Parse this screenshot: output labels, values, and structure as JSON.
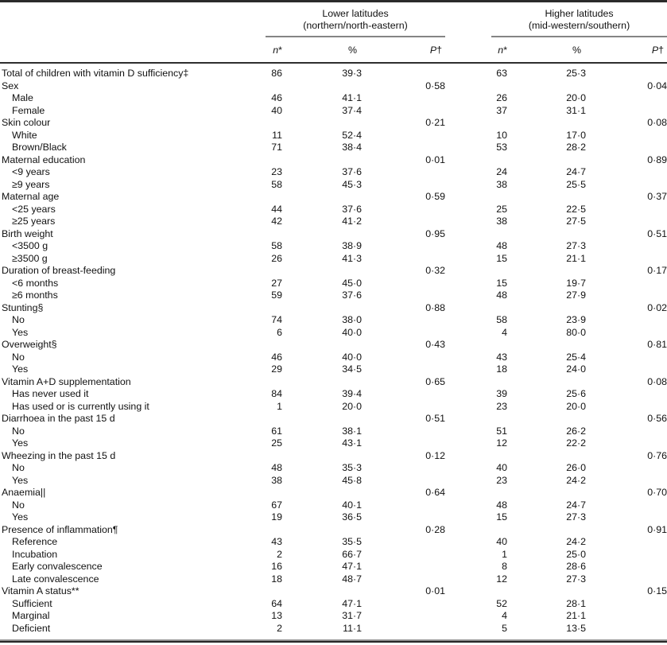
{
  "colors": {
    "rule_dark": "#2b2b2b",
    "rule_gray": "#8f8f8f",
    "text": "#111111"
  },
  "table": {
    "groups": [
      {
        "name": "Lower latitudes",
        "subtitle": "(northern/north-eastern)"
      },
      {
        "name": "Higher latitudes",
        "subtitle": "(mid-western/southern)"
      }
    ],
    "col_headers": {
      "n_letter": "n",
      "n_mark": "*",
      "pct": "%",
      "p_letter": "P",
      "p_mark": "†"
    },
    "rows": [
      {
        "label": "Total of children with vitamin D sufficiency‡",
        "indent": false,
        "n1": "86",
        "pct1": "39·3",
        "p1": "",
        "n2": "63",
        "pct2": "25·3",
        "p2": ""
      },
      {
        "label": "Sex",
        "indent": false,
        "n1": "",
        "pct1": "",
        "p1": "0·58",
        "n2": "",
        "pct2": "",
        "p2": "0·04"
      },
      {
        "label": "Male",
        "indent": true,
        "n1": "46",
        "pct1": "41·1",
        "p1": "",
        "n2": "26",
        "pct2": "20·0",
        "p2": ""
      },
      {
        "label": "Female",
        "indent": true,
        "n1": "40",
        "pct1": "37·4",
        "p1": "",
        "n2": "37",
        "pct2": "31·1",
        "p2": ""
      },
      {
        "label": "Skin colour",
        "indent": false,
        "n1": "",
        "pct1": "",
        "p1": "0·21",
        "n2": "",
        "pct2": "",
        "p2": "0·08"
      },
      {
        "label": "White",
        "indent": true,
        "n1": "11",
        "pct1": "52·4",
        "p1": "",
        "n2": "10",
        "pct2": "17·0",
        "p2": ""
      },
      {
        "label": "Brown/Black",
        "indent": true,
        "n1": "71",
        "pct1": "38·4",
        "p1": "",
        "n2": "53",
        "pct2": "28·2",
        "p2": ""
      },
      {
        "label": "Maternal education",
        "indent": false,
        "n1": "",
        "pct1": "",
        "p1": "0·01",
        "n2": "",
        "pct2": "",
        "p2": "0·89"
      },
      {
        "label": "<9 years",
        "indent": true,
        "n1": "23",
        "pct1": "37·6",
        "p1": "",
        "n2": "24",
        "pct2": "24·7",
        "p2": ""
      },
      {
        "label": "≥9 years",
        "indent": true,
        "n1": "58",
        "pct1": "45·3",
        "p1": "",
        "n2": "38",
        "pct2": "25·5",
        "p2": ""
      },
      {
        "label": "Maternal age",
        "indent": false,
        "n1": "",
        "pct1": "",
        "p1": "0·59",
        "n2": "",
        "pct2": "",
        "p2": "0·37"
      },
      {
        "label": "<25 years",
        "indent": true,
        "n1": "44",
        "pct1": "37·6",
        "p1": "",
        "n2": "25",
        "pct2": "22·5",
        "p2": ""
      },
      {
        "label": "≥25 years",
        "indent": true,
        "n1": "42",
        "pct1": "41·2",
        "p1": "",
        "n2": "38",
        "pct2": "27·5",
        "p2": ""
      },
      {
        "label": "Birth weight",
        "indent": false,
        "n1": "",
        "pct1": "",
        "p1": "0·95",
        "n2": "",
        "pct2": "",
        "p2": "0·51"
      },
      {
        "label": "<3500 g",
        "indent": true,
        "n1": "58",
        "pct1": "38·9",
        "p1": "",
        "n2": "48",
        "pct2": "27·3",
        "p2": ""
      },
      {
        "label": "≥3500 g",
        "indent": true,
        "n1": "26",
        "pct1": "41·3",
        "p1": "",
        "n2": "15",
        "pct2": "21·1",
        "p2": ""
      },
      {
        "label": "Duration of breast-feeding",
        "indent": false,
        "n1": "",
        "pct1": "",
        "p1": "0·32",
        "n2": "",
        "pct2": "",
        "p2": "0·17"
      },
      {
        "label": "<6 months",
        "indent": true,
        "n1": "27",
        "pct1": "45·0",
        "p1": "",
        "n2": "15",
        "pct2": "19·7",
        "p2": ""
      },
      {
        "label": "≥6 months",
        "indent": true,
        "n1": "59",
        "pct1": "37·6",
        "p1": "",
        "n2": "48",
        "pct2": "27·9",
        "p2": ""
      },
      {
        "label": "Stunting§",
        "indent": false,
        "n1": "",
        "pct1": "",
        "p1": "0·88",
        "n2": "",
        "pct2": "",
        "p2": "0·02"
      },
      {
        "label": "No",
        "indent": true,
        "n1": "74",
        "pct1": "38·0",
        "p1": "",
        "n2": "58",
        "pct2": "23·9",
        "p2": ""
      },
      {
        "label": "Yes",
        "indent": true,
        "n1": "6",
        "pct1": "40·0",
        "p1": "",
        "n2": "4",
        "pct2": "80·0",
        "p2": ""
      },
      {
        "label": "Overweight§",
        "indent": false,
        "n1": "",
        "pct1": "",
        "p1": "0·43",
        "n2": "",
        "pct2": "",
        "p2": "0·81"
      },
      {
        "label": "No",
        "indent": true,
        "n1": "46",
        "pct1": "40·0",
        "p1": "",
        "n2": "43",
        "pct2": "25·4",
        "p2": ""
      },
      {
        "label": "Yes",
        "indent": true,
        "n1": "29",
        "pct1": "34·5",
        "p1": "",
        "n2": "18",
        "pct2": "24·0",
        "p2": ""
      },
      {
        "label": "Vitamin A+D supplementation",
        "indent": false,
        "n1": "",
        "pct1": "",
        "p1": "0·65",
        "n2": "",
        "pct2": "",
        "p2": "0·08"
      },
      {
        "label": "Has never used it",
        "indent": true,
        "n1": "84",
        "pct1": "39·4",
        "p1": "",
        "n2": "39",
        "pct2": "25·6",
        "p2": ""
      },
      {
        "label": "Has used or is currently using it",
        "indent": true,
        "n1": "1",
        "pct1": "20·0",
        "p1": "",
        "n2": "23",
        "pct2": "20·0",
        "p2": ""
      },
      {
        "label": "Diarrhoea in the past 15 d",
        "indent": false,
        "n1": "",
        "pct1": "",
        "p1": "0·51",
        "n2": "",
        "pct2": "",
        "p2": "0·56"
      },
      {
        "label": "No",
        "indent": true,
        "n1": "61",
        "pct1": "38·1",
        "p1": "",
        "n2": "51",
        "pct2": "26·2",
        "p2": ""
      },
      {
        "label": "Yes",
        "indent": true,
        "n1": "25",
        "pct1": "43·1",
        "p1": "",
        "n2": "12",
        "pct2": "22·2",
        "p2": ""
      },
      {
        "label": "Wheezing in the past 15 d",
        "indent": false,
        "n1": "",
        "pct1": "",
        "p1": "0·12",
        "n2": "",
        "pct2": "",
        "p2": "0·76"
      },
      {
        "label": "No",
        "indent": true,
        "n1": "48",
        "pct1": "35·3",
        "p1": "",
        "n2": "40",
        "pct2": "26·0",
        "p2": ""
      },
      {
        "label": "Yes",
        "indent": true,
        "n1": "38",
        "pct1": "45·8",
        "p1": "",
        "n2": "23",
        "pct2": "24·2",
        "p2": ""
      },
      {
        "label": "Anaemia||",
        "indent": false,
        "n1": "",
        "pct1": "",
        "p1": "0·64",
        "n2": "",
        "pct2": "",
        "p2": "0·70"
      },
      {
        "label": "No",
        "indent": true,
        "n1": "67",
        "pct1": "40·1",
        "p1": "",
        "n2": "48",
        "pct2": "24·7",
        "p2": ""
      },
      {
        "label": "Yes",
        "indent": true,
        "n1": "19",
        "pct1": "36·5",
        "p1": "",
        "n2": "15",
        "pct2": "27·3",
        "p2": ""
      },
      {
        "label": "Presence of inflammation¶",
        "indent": false,
        "n1": "",
        "pct1": "",
        "p1": "0·28",
        "n2": "",
        "pct2": "",
        "p2": "0·91"
      },
      {
        "label": "Reference",
        "indent": true,
        "n1": "43",
        "pct1": "35·5",
        "p1": "",
        "n2": "40",
        "pct2": "24·2",
        "p2": ""
      },
      {
        "label": "Incubation",
        "indent": true,
        "n1": "2",
        "pct1": "66·7",
        "p1": "",
        "n2": "1",
        "pct2": "25·0",
        "p2": ""
      },
      {
        "label": "Early convalescence",
        "indent": true,
        "n1": "16",
        "pct1": "47·1",
        "p1": "",
        "n2": "8",
        "pct2": "28·6",
        "p2": ""
      },
      {
        "label": "Late convalescence",
        "indent": true,
        "n1": "18",
        "pct1": "48·7",
        "p1": "",
        "n2": "12",
        "pct2": "27·3",
        "p2": ""
      },
      {
        "label": "Vitamin A status**",
        "indent": false,
        "n1": "",
        "pct1": "",
        "p1": "0·01",
        "n2": "",
        "pct2": "",
        "p2": "0·15"
      },
      {
        "label": "Sufficient",
        "indent": true,
        "n1": "64",
        "pct1": "47·1",
        "p1": "",
        "n2": "52",
        "pct2": "28·1",
        "p2": ""
      },
      {
        "label": "Marginal",
        "indent": true,
        "n1": "13",
        "pct1": "31·7",
        "p1": "",
        "n2": "4",
        "pct2": "21·1",
        "p2": ""
      },
      {
        "label": "Deficient",
        "indent": true,
        "n1": "2",
        "pct1": "11·1",
        "p1": "",
        "n2": "5",
        "pct2": "13·5",
        "p2": ""
      }
    ]
  }
}
